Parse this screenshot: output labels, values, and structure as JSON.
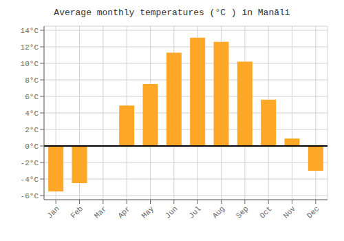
{
  "chart_data": {
    "type": "bar",
    "title": "Average monthly temperatures (°C ) in Manāli",
    "categories": [
      "Jan",
      "Feb",
      "Mar",
      "Apr",
      "May",
      "Jun",
      "Jul",
      "Aug",
      "Sep",
      "Oct",
      "Nov",
      "Dec"
    ],
    "values": [
      -5.5,
      -4.5,
      0.0,
      4.9,
      7.5,
      11.3,
      13.1,
      12.6,
      10.2,
      5.6,
      0.9,
      -3.0
    ],
    "color": "#FFA726",
    "ylim": [
      -6.5,
      14.5
    ],
    "yticks": [
      {
        "value": -6,
        "label": "-6°C"
      },
      {
        "value": -4,
        "label": "-4°C"
      },
      {
        "value": -2,
        "label": "-2°C"
      },
      {
        "value": 0,
        "label": "0°C"
      },
      {
        "value": 2,
        "label": "2°C"
      },
      {
        "value": 4,
        "label": "4°C"
      },
      {
        "value": 6,
        "label": "6°C"
      },
      {
        "value": 8,
        "label": "8°C"
      },
      {
        "value": 10,
        "label": "10°C"
      },
      {
        "value": 12,
        "label": "12°C"
      },
      {
        "value": 14,
        "label": "14°C"
      }
    ],
    "grid": true
  }
}
